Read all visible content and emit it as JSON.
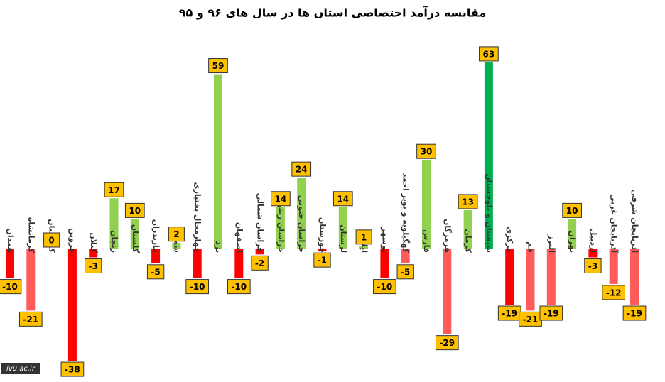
{
  "chart_data": {
    "type": "bar",
    "title": "مقایسه درآمد اختصاصی استان ها در سال های ۹۶ و ۹۵",
    "categories": [
      "همدان",
      "کرمانشاه",
      "کردستان",
      "قزوین",
      "گیلان",
      "زنجان",
      "گلستان",
      "مازندران",
      "سمنان",
      "چهارمحال بختیاری",
      "یزد",
      "اصفهان",
      "خراسان شمالی",
      "خراسان رضوی",
      "خراسان جنوبی",
      "خوزستان",
      "لرستان",
      "ایلام",
      "بوشهر",
      "کهگیلویه و بویر احمد",
      "فارس",
      "هرمزگان",
      "کرمان",
      "سیستان و بلوچستان",
      "مرکزی",
      "قم",
      "البرز",
      "تهران",
      "اردبیل",
      "آذربایجان غربی",
      "آذربایجان شرقی"
    ],
    "values": [
      -10,
      -21,
      0,
      -38,
      -3,
      17,
      10,
      -5,
      2,
      -10,
      59,
      -10,
      -2,
      14,
      24,
      -1,
      14,
      1,
      -10,
      -5,
      30,
      -29,
      13,
      63,
      -19,
      -21,
      -19,
      10,
      -3,
      -12,
      -19
    ],
    "colors": [
      "#ff0000",
      "#ff5b5b",
      "#92d050",
      "#ff0000",
      "#ff0000",
      "#92d050",
      "#92d050",
      "#ff0000",
      "#92d050",
      "#ff0000",
      "#92d050",
      "#ff0000",
      "#ff0000",
      "#92d050",
      "#92d050",
      "#ff0000",
      "#92d050",
      "#92d050",
      "#ff0000",
      "#ff5b5b",
      "#92d050",
      "#ff5b5b",
      "#92d050",
      "#00b050",
      "#ff0000",
      "#ff5b5b",
      "#ff5b5b",
      "#92d050",
      "#ff0000",
      "#ff5b5b",
      "#ff5b5b"
    ],
    "label_box_color": "#ffc000",
    "watermark": "ivu.ac.ir"
  }
}
